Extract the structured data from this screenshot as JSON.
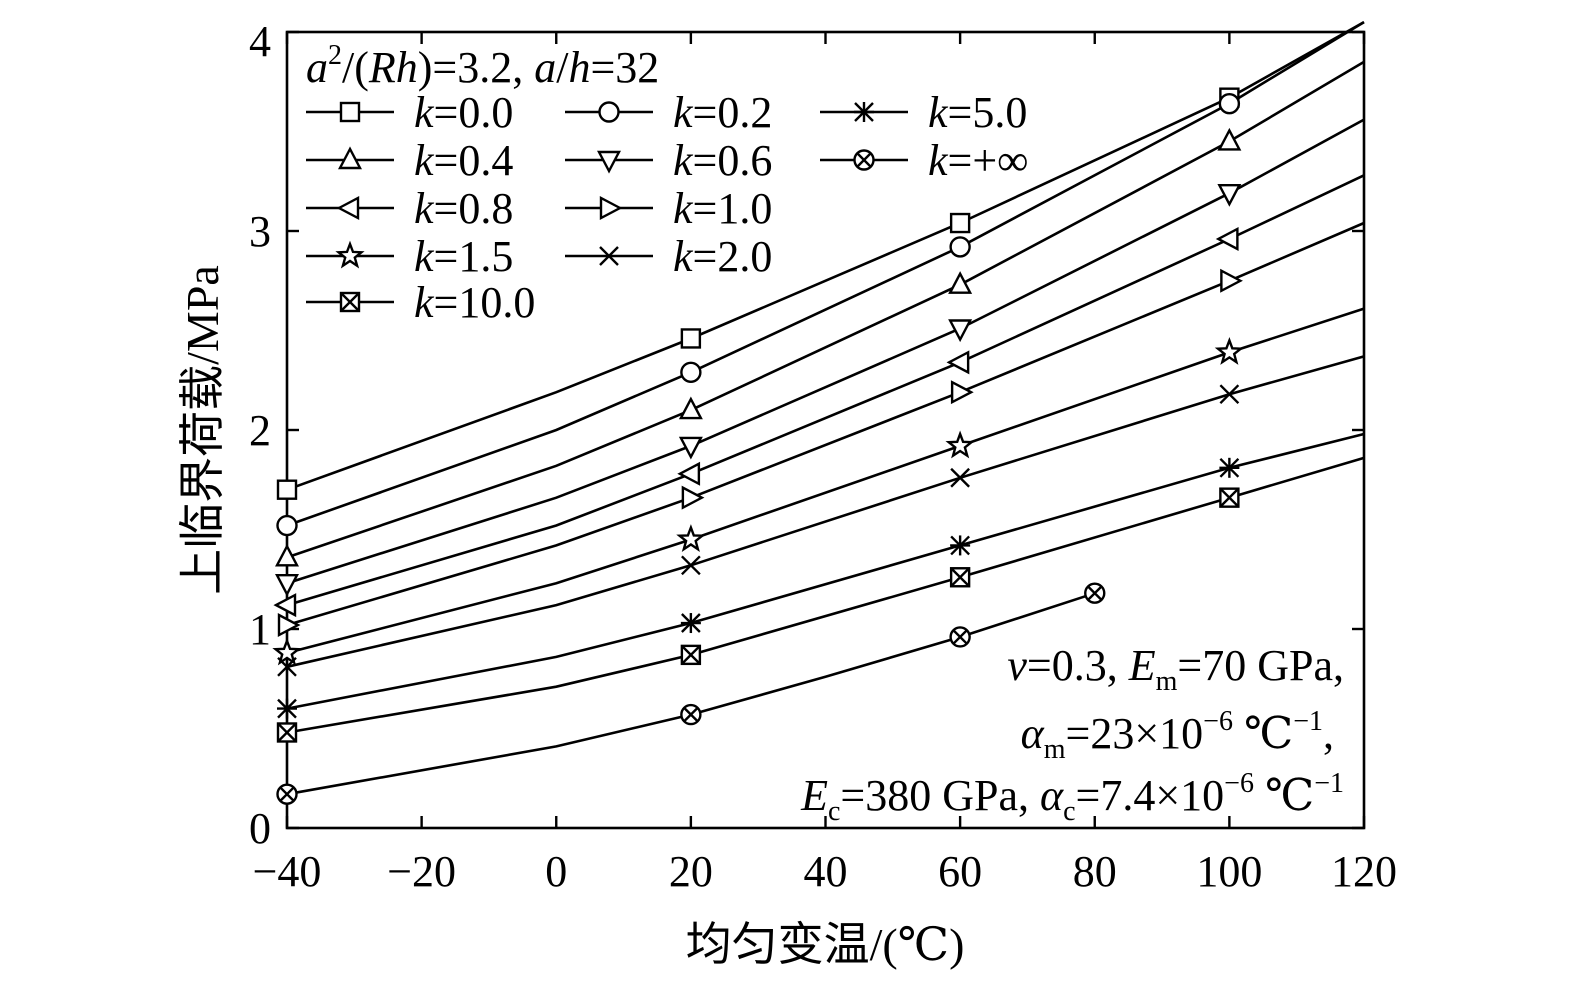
{
  "chart_data": {
    "type": "line",
    "xlabel": "均匀变温/(℃)",
    "ylabel": "上临界荷载/MPa",
    "xlim": [
      -40,
      120
    ],
    "ylim": [
      0,
      4
    ],
    "xticks": [
      -40,
      -20,
      0,
      20,
      40,
      60,
      80,
      100,
      120
    ],
    "yticks": [
      0,
      1,
      2,
      3,
      4
    ],
    "xtick_labels": [
      "−40",
      "−20",
      "0",
      "20",
      "40",
      "60",
      "80",
      "100",
      "120"
    ],
    "ytick_labels": [
      "0",
      "1",
      "2",
      "3",
      "4"
    ],
    "grid": false,
    "legend_header": {
      "a": "a",
      "sup": "2",
      "b": "/(",
      "R": "R",
      "h": "h",
      "c": ")=3.2, ",
      "a2": "a",
      "d": "/",
      "h2": "h",
      "e": "=32"
    },
    "legend_position": "top-left",
    "marker_x": [
      -40,
      20,
      60,
      100
    ],
    "series": [
      {
        "name": "=0.0",
        "k": "k",
        "marker": "square",
        "x": [
          -40,
          0,
          20,
          60,
          100,
          120
        ],
        "y": [
          1.7,
          2.19,
          2.46,
          3.04,
          3.67,
          4.05
        ]
      },
      {
        "name": "=0.2",
        "k": "k",
        "marker": "circle",
        "x": [
          -40,
          0,
          20,
          60,
          100,
          120
        ],
        "y": [
          1.52,
          2.0,
          2.29,
          2.92,
          3.64,
          4.05
        ]
      },
      {
        "name": "=0.4",
        "k": "k",
        "marker": "triangle-up",
        "x": [
          -40,
          0,
          20,
          60,
          100,
          120
        ],
        "y": [
          1.36,
          1.82,
          2.1,
          2.73,
          3.45,
          3.85
        ]
      },
      {
        "name": "=0.6",
        "k": "k",
        "marker": "triangle-down",
        "x": [
          -40,
          0,
          20,
          60,
          100,
          120
        ],
        "y": [
          1.23,
          1.66,
          1.92,
          2.51,
          3.19,
          3.56
        ]
      },
      {
        "name": "=0.8",
        "k": "k",
        "marker": "triangle-left",
        "x": [
          -40,
          0,
          20,
          60,
          100,
          120
        ],
        "y": [
          1.12,
          1.52,
          1.78,
          2.34,
          2.96,
          3.28
        ]
      },
      {
        "name": "=1.0",
        "k": "k",
        "marker": "triangle-right",
        "x": [
          -40,
          0,
          20,
          60,
          100,
          120
        ],
        "y": [
          1.02,
          1.42,
          1.66,
          2.19,
          2.75,
          3.04
        ]
      },
      {
        "name": "=1.5",
        "k": "k",
        "marker": "star",
        "x": [
          -40,
          0,
          20,
          60,
          100,
          120
        ],
        "y": [
          0.88,
          1.23,
          1.45,
          1.92,
          2.39,
          2.61
        ]
      },
      {
        "name": "=2.0",
        "k": "k",
        "marker": "x",
        "x": [
          -40,
          0,
          20,
          60,
          100,
          120
        ],
        "y": [
          0.81,
          1.12,
          1.32,
          1.76,
          2.18,
          2.37
        ]
      },
      {
        "name": "=5.0",
        "k": "k",
        "marker": "asterisk",
        "x": [
          -40,
          0,
          20,
          60,
          100,
          120
        ],
        "y": [
          0.6,
          0.86,
          1.03,
          1.42,
          1.81,
          1.98
        ]
      },
      {
        "name": "=10.0",
        "k": "k",
        "marker": "boxed-x",
        "x": [
          -40,
          0,
          20,
          60,
          100,
          120
        ],
        "y": [
          0.48,
          0.71,
          0.87,
          1.26,
          1.66,
          1.86
        ]
      },
      {
        "name": "=+∞",
        "k": "k",
        "marker": "circled-x",
        "x": [
          -40,
          0,
          20,
          40,
          60,
          80
        ],
        "y": [
          0.17,
          0.41,
          0.57,
          0.76,
          0.96,
          1.18
        ],
        "marker_x": [
          -40,
          20,
          60,
          80
        ]
      }
    ],
    "annotation": {
      "line1": {
        "nu": "ν",
        "a": "=0.3, ",
        "E": "E",
        "Esub": "m",
        "b": "=70 GPa,"
      },
      "line2": {
        "alpha": "α",
        "asub": "m",
        "a": "=23×10",
        "exp": "−6",
        "b": " ℃",
        "exp2": "−1",
        "c": ","
      },
      "line3": {
        "E": "E",
        "Esub": "c",
        "a": "=380 GPa, ",
        "alpha": "α",
        "asub": "c",
        "b": "=7.4×10",
        "exp": "−6",
        "c": " ℃",
        "exp2": "−1"
      }
    }
  }
}
